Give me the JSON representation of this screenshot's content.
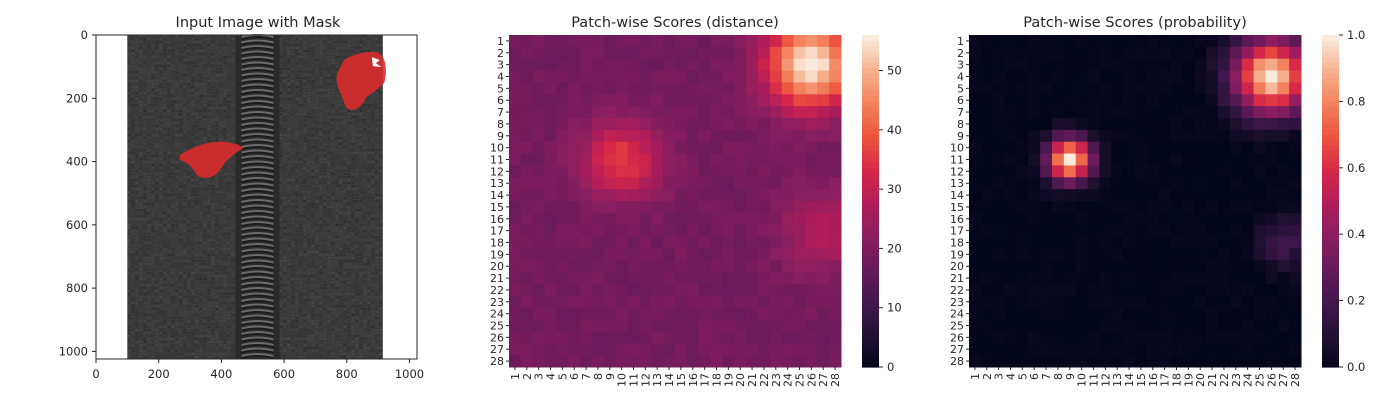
{
  "chart_data": [
    {
      "type": "image",
      "title": "Input Image with Mask",
      "x_ticks": [
        "0",
        "200",
        "400",
        "600",
        "800",
        "1000"
      ],
      "y_ticks": [
        "0",
        "200",
        "400",
        "600",
        "800",
        "1000"
      ],
      "xlim": [
        0,
        1024
      ],
      "ylim": [
        1024,
        0
      ],
      "image_content": "dark gray woven zipper tape with a central coil zipper; background white",
      "mask_color": "#d92b2b",
      "mask_regions": [
        {
          "label": "defect-left",
          "center": [
            370,
            400
          ]
        },
        {
          "label": "defect-right",
          "center": [
            860,
            110
          ]
        }
      ]
    },
    {
      "type": "heatmap",
      "title": "Patch-wise Scores (distance)",
      "x_ticks": [
        "1",
        "2",
        "3",
        "4",
        "5",
        "6",
        "7",
        "8",
        "9",
        "10",
        "11",
        "12",
        "13",
        "14",
        "15",
        "16",
        "17",
        "18",
        "19",
        "20",
        "21",
        "22",
        "23",
        "24",
        "25",
        "26",
        "27",
        "28"
      ],
      "y_ticks": [
        "1",
        "2",
        "3",
        "4",
        "5",
        "6",
        "7",
        "8",
        "9",
        "10",
        "11",
        "12",
        "13",
        "14",
        "15",
        "16",
        "17",
        "18",
        "19",
        "20",
        "21",
        "22",
        "23",
        "24",
        "25",
        "26",
        "27",
        "28"
      ],
      "colorbar": {
        "min": 0,
        "max": 56,
        "ticks": [
          "0",
          "10",
          "20",
          "30",
          "40",
          "50"
        ],
        "colormap": "rocket"
      },
      "baseline": 19,
      "hotspots": [
        {
          "row": 11,
          "col": 10,
          "peak": 36,
          "radius": 2.3
        },
        {
          "row": 3,
          "col": 26,
          "peak": 56,
          "radius": 2.6
        },
        {
          "row": 17,
          "col": 27,
          "peak": 28,
          "radius": 2.5
        }
      ]
    },
    {
      "type": "heatmap",
      "title": "Patch-wise Scores (probability)",
      "x_ticks": [
        "1",
        "2",
        "3",
        "4",
        "5",
        "6",
        "7",
        "8",
        "9",
        "10",
        "11",
        "12",
        "13",
        "14",
        "15",
        "16",
        "17",
        "18",
        "19",
        "20",
        "21",
        "22",
        "23",
        "24",
        "25",
        "26",
        "27",
        "28"
      ],
      "y_ticks": [
        "1",
        "2",
        "3",
        "4",
        "5",
        "6",
        "7",
        "8",
        "9",
        "10",
        "11",
        "12",
        "13",
        "14",
        "15",
        "16",
        "17",
        "18",
        "19",
        "20",
        "21",
        "22",
        "23",
        "24",
        "25",
        "26",
        "27",
        "28"
      ],
      "colorbar": {
        "min": 0.0,
        "max": 1.0,
        "ticks": [
          "0.0",
          "0.2",
          "0.4",
          "0.6",
          "0.8",
          "1.0"
        ],
        "colormap": "rocket"
      },
      "baseline": 0.0,
      "hotspots": [
        {
          "row": 11,
          "col": 9,
          "peak": 1.0,
          "radius": 1.3
        },
        {
          "row": 4,
          "col": 26,
          "peak": 1.0,
          "radius": 2.2
        },
        {
          "row": 18,
          "col": 27,
          "peak": 0.2,
          "radius": 1.5
        }
      ]
    }
  ]
}
